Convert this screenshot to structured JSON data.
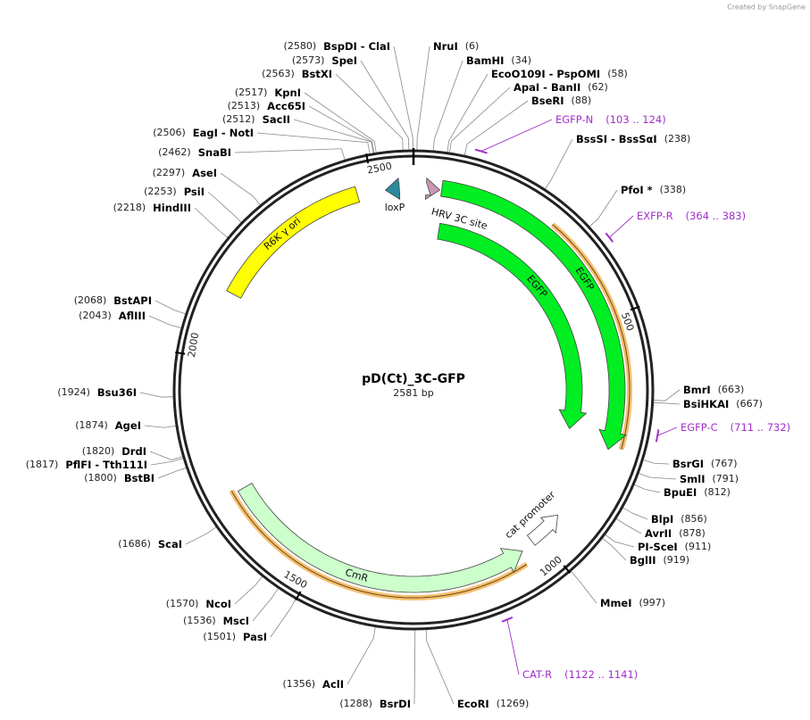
{
  "header": {
    "credit": "Created by SnapGene"
  },
  "map": {
    "name": "pD(Ct)_3C-GFP",
    "length": "2581 bp",
    "ring_ticks": [
      500,
      1000,
      1500,
      2000,
      2500
    ]
  },
  "enzymes": [
    {
      "name": "BspDI - ClaI",
      "site": "(2580)"
    },
    {
      "name": "SpeI",
      "site": "(2573)"
    },
    {
      "name": "BstXI",
      "site": "(2563)"
    },
    {
      "name": "KpnI",
      "site": "(2517)"
    },
    {
      "name": "Acc65I",
      "site": "(2513)"
    },
    {
      "name": "SacII",
      "site": "(2512)"
    },
    {
      "name": "EagI - NotI",
      "site": "(2506)"
    },
    {
      "name": "SnaBI",
      "site": "(2462)"
    },
    {
      "name": "AseI",
      "site": "(2297)"
    },
    {
      "name": "PsiI",
      "site": "(2253)"
    },
    {
      "name": "HindIII",
      "site": "(2218)"
    },
    {
      "name": "BstAPI",
      "site": "(2068)"
    },
    {
      "name": "AflIII",
      "site": "(2043)"
    },
    {
      "name": "Bsu36I",
      "site": "(1924)"
    },
    {
      "name": "AgeI",
      "site": "(1874)"
    },
    {
      "name": "DrdI",
      "site": "(1820)"
    },
    {
      "name": "PflFI - Tth111I",
      "site": "(1817)"
    },
    {
      "name": "BstBI",
      "site": "(1800)"
    },
    {
      "name": "ScaI",
      "site": "(1686)"
    },
    {
      "name": "NcoI",
      "site": "(1570)"
    },
    {
      "name": "MscI",
      "site": "(1536)"
    },
    {
      "name": "PasI",
      "site": "(1501)"
    },
    {
      "name": "AclI",
      "site": "(1356)"
    },
    {
      "name": "BsrDI",
      "site": "(1288)"
    },
    {
      "name": "NruI",
      "site": "(6)"
    },
    {
      "name": "BamHI",
      "site": "(34)"
    },
    {
      "name": "EcoO109I - PspOMI",
      "site": "(58)"
    },
    {
      "name": "ApaI - BanII",
      "site": "(62)"
    },
    {
      "name": "BseRI",
      "site": "(88)"
    },
    {
      "name": "BssSI - BssSαI",
      "site": "(238)"
    },
    {
      "name": "PfoI *",
      "site": "(338)"
    },
    {
      "name": "BmrI",
      "site": "(663)"
    },
    {
      "name": "BsiHKAI",
      "site": "(667)"
    },
    {
      "name": "BsrGI",
      "site": "(767)"
    },
    {
      "name": "SmlI",
      "site": "(791)"
    },
    {
      "name": "BpuEI",
      "site": "(812)"
    },
    {
      "name": "BlpI",
      "site": "(856)"
    },
    {
      "name": "AvrII",
      "site": "(878)"
    },
    {
      "name": "PI-SceI",
      "site": "(911)"
    },
    {
      "name": "BglII",
      "site": "(919)"
    },
    {
      "name": "MmeI",
      "site": "(997)"
    },
    {
      "name": "EcoRI",
      "site": "(1269)"
    }
  ],
  "primers": [
    {
      "name": "EGFP-N",
      "range": "(103 .. 124)"
    },
    {
      "name": "EXFP-R",
      "range": "(364 .. 383)"
    },
    {
      "name": "EGFP-C",
      "range": "(711 .. 732)"
    },
    {
      "name": "CAT-R",
      "range": "(1122 .. 1141)"
    }
  ],
  "features": [
    {
      "label": "R6K γ ori"
    },
    {
      "label": "loxP"
    },
    {
      "label": "HRV 3C site"
    },
    {
      "label": "EGFP"
    },
    {
      "label": "EGFP"
    },
    {
      "label": "CmR"
    },
    {
      "label": "cat promoter"
    }
  ]
}
